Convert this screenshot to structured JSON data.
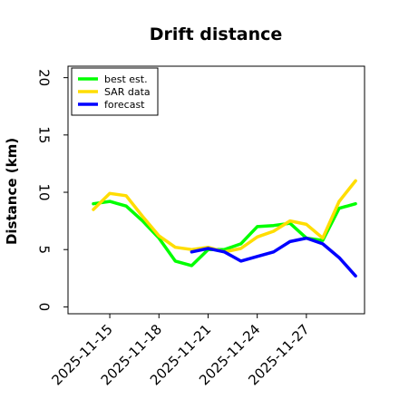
{
  "chart_data": {
    "type": "line",
    "title": "Drift distance",
    "ylabel": "Distance (km)",
    "xlabel": "",
    "ylim": [
      0,
      21
    ],
    "yticks": [
      0,
      5,
      10,
      15,
      20
    ],
    "xlim": [
      "2025-11-13",
      "2025-11-30"
    ],
    "xticks": [
      "2025-11-15",
      "2025-11-18",
      "2025-11-21",
      "2025-11-24",
      "2025-11-27"
    ],
    "grid": false,
    "legend_position": "top-left",
    "series": [
      {
        "name": "best est.",
        "color": "#00ff00",
        "x": [
          "2025-11-14",
          "2025-11-15",
          "2025-11-16",
          "2025-11-17",
          "2025-11-18",
          "2025-11-19",
          "2025-11-20",
          "2025-11-21",
          "2025-11-22",
          "2025-11-23",
          "2025-11-24",
          "2025-11-25",
          "2025-11-26",
          "2025-11-27",
          "2025-11-28",
          "2025-11-29",
          "2025-11-30"
        ],
        "y": [
          9.0,
          9.2,
          8.8,
          7.5,
          6.0,
          4.0,
          3.6,
          5.0,
          5.0,
          5.5,
          7.0,
          7.1,
          7.3,
          6.0,
          5.8,
          8.6,
          9.0
        ]
      },
      {
        "name": "SAR data",
        "color": "#ffdd00",
        "x": [
          "2025-11-14",
          "2025-11-15",
          "2025-11-16",
          "2025-11-17",
          "2025-11-18",
          "2025-11-19",
          "2025-11-20",
          "2025-11-21",
          "2025-11-22",
          "2025-11-23",
          "2025-11-24",
          "2025-11-25",
          "2025-11-26",
          "2025-11-27",
          "2025-11-28",
          "2025-11-29",
          "2025-11-30"
        ],
        "y": [
          8.5,
          9.9,
          9.7,
          7.9,
          6.2,
          5.2,
          5.0,
          5.2,
          4.8,
          5.1,
          6.1,
          6.6,
          7.5,
          7.2,
          6.0,
          9.2,
          11.0
        ]
      },
      {
        "name": "forecast",
        "color": "#0000ff",
        "x": [
          "2025-11-20",
          "2025-11-21",
          "2025-11-22",
          "2025-11-23",
          "2025-11-24",
          "2025-11-25",
          "2025-11-26",
          "2025-11-27",
          "2025-11-28",
          "2025-11-29",
          "2025-11-30"
        ],
        "y": [
          4.8,
          5.1,
          4.8,
          4.0,
          4.4,
          4.8,
          5.7,
          6.0,
          5.5,
          4.3,
          2.7
        ]
      }
    ]
  }
}
